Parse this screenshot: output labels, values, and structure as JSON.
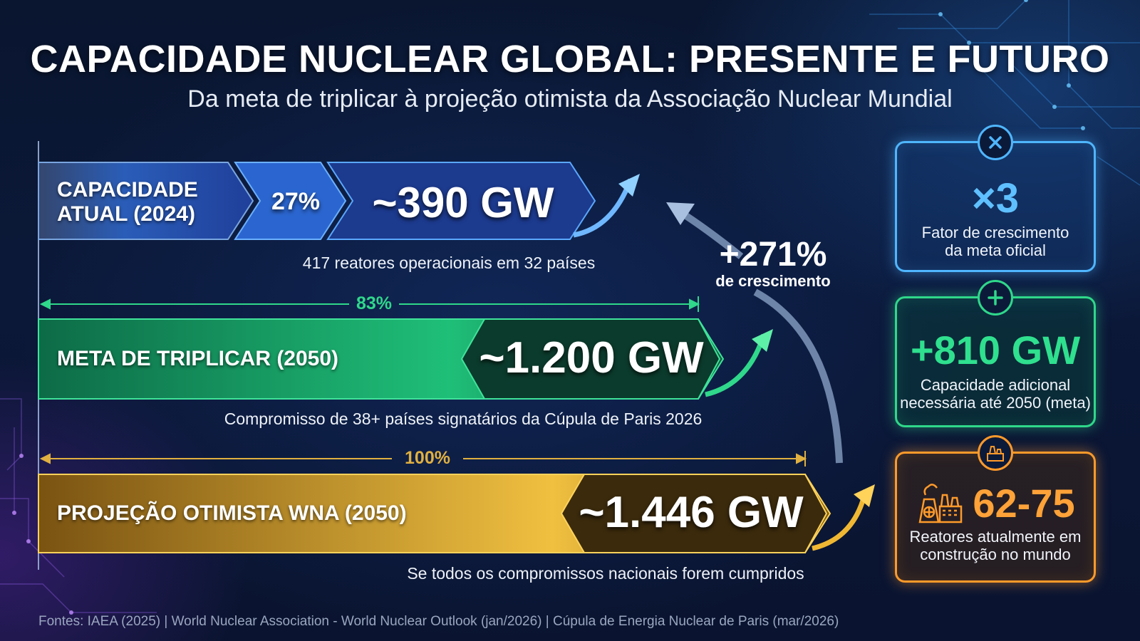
{
  "header": {
    "title": "CAPACIDADE NUCLEAR GLOBAL: PRESENTE E FUTURO",
    "subtitle": "Da meta de triplicar à projeção otimista da Associação Nuclear Mundial"
  },
  "bars": [
    {
      "label_line1": "CAPACIDADE",
      "label_line2": "ATUAL (2024)",
      "percent": "27%",
      "value": "~390 GW",
      "caption": "417 reatores operacionais em 32 países",
      "color": "#2f6fd6"
    },
    {
      "range_percent": "83%",
      "label": "META DE TRIPLICAR (2050)",
      "value": "~1.200 GW",
      "caption": "Compromisso de 38+ países signatários da Cúpula de Paris 2026",
      "color": "#17b36a"
    },
    {
      "range_percent": "100%",
      "label": "PROJEÇÃO OTIMISTA WNA (2050)",
      "value": "~1.446 GW",
      "caption": "Se todos os compromissos nacionais forem cumpridos",
      "color": "#d9a21c"
    }
  ],
  "growth": {
    "value": "+271%",
    "label": "de crescimento"
  },
  "cards": [
    {
      "icon": "close-circle-icon",
      "value": "×3",
      "label_line1": "Fator de crescimento",
      "label_line2": "da meta oficial",
      "color": "#4fb6ff"
    },
    {
      "icon": "plus-circle-icon",
      "value": "+810 GW",
      "label_line1": "Capacidade adicional",
      "label_line2": "necessária até 2050 (meta)",
      "color": "#2fd88a"
    },
    {
      "icon": "nuclear-plant-icon",
      "value": "62-75",
      "label_line1": "Reatores atualmente em",
      "label_line2": "construção no mundo",
      "color": "#ff9a2a"
    }
  ],
  "footer": {
    "sources": "Fontes: IAEA (2025) | World Nuclear Association - World Nuclear Outlook (jan/2026) | Cúpula de Energia Nuclear de Paris (mar/2026)"
  }
}
